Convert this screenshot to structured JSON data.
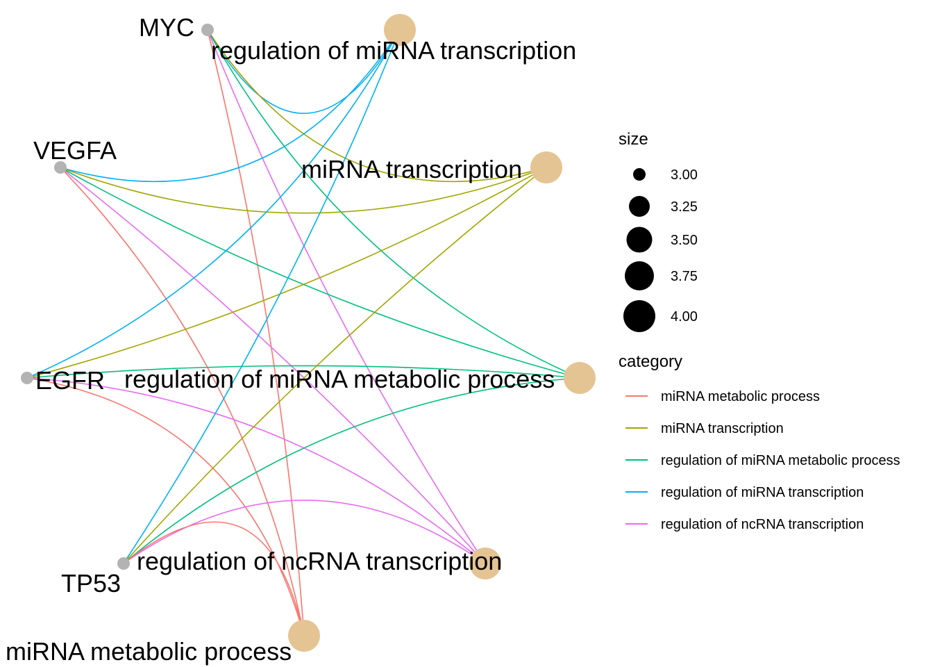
{
  "colors": {
    "miRNA metabolic process": "#F8766D",
    "miRNA transcription": "#A3A500",
    "regulation of miRNA metabolic process": "#00BF7D",
    "regulation of miRNA transcription": "#00B0F6",
    "regulation of ncRNA transcription": "#E76BF3",
    "gene_node": "#B3B3B3",
    "category_node": "#E5C494"
  },
  "genes": [
    {
      "name": "MYC",
      "label": "MYC"
    },
    {
      "name": "VEGFA",
      "label": "VEGFA"
    },
    {
      "name": "EGFR",
      "label": "EGFR"
    },
    {
      "name": "TP53",
      "label": "TP53"
    }
  ],
  "categories": [
    {
      "name": "regulation of miRNA transcription",
      "label": "regulation of miRNA transcription",
      "size": 4
    },
    {
      "name": "miRNA transcription",
      "label": "miRNA transcription",
      "size": 4
    },
    {
      "name": "regulation of miRNA metabolic process",
      "label": "regulation of miRNA metabolic process",
      "size": 4
    },
    {
      "name": "regulation of ncRNA transcription",
      "label": "regulation of ncRNA transcription",
      "size": 4
    },
    {
      "name": "miRNA metabolic process",
      "label": "miRNA metabolic process",
      "size": 4
    }
  ],
  "edges": [
    {
      "gene": "MYC",
      "category": "regulation of miRNA transcription"
    },
    {
      "gene": "MYC",
      "category": "miRNA transcription"
    },
    {
      "gene": "MYC",
      "category": "regulation of miRNA metabolic process"
    },
    {
      "gene": "MYC",
      "category": "regulation of ncRNA transcription"
    },
    {
      "gene": "MYC",
      "category": "miRNA metabolic process"
    },
    {
      "gene": "VEGFA",
      "category": "regulation of miRNA transcription"
    },
    {
      "gene": "VEGFA",
      "category": "miRNA transcription"
    },
    {
      "gene": "VEGFA",
      "category": "regulation of miRNA metabolic process"
    },
    {
      "gene": "VEGFA",
      "category": "regulation of ncRNA transcription"
    },
    {
      "gene": "VEGFA",
      "category": "miRNA metabolic process"
    },
    {
      "gene": "EGFR",
      "category": "regulation of miRNA transcription"
    },
    {
      "gene": "EGFR",
      "category": "miRNA transcription"
    },
    {
      "gene": "EGFR",
      "category": "regulation of miRNA metabolic process"
    },
    {
      "gene": "EGFR",
      "category": "regulation of ncRNA transcription"
    },
    {
      "gene": "EGFR",
      "category": "miRNA metabolic process"
    },
    {
      "gene": "TP53",
      "category": "regulation of miRNA transcription"
    },
    {
      "gene": "TP53",
      "category": "miRNA transcription"
    },
    {
      "gene": "TP53",
      "category": "regulation of miRNA metabolic process"
    },
    {
      "gene": "TP53",
      "category": "regulation of ncRNA transcription"
    },
    {
      "gene": "TP53",
      "category": "miRNA metabolic process"
    }
  ],
  "legend": {
    "size_title": "size",
    "size_items": [
      {
        "label": "3.00",
        "value": 3.0
      },
      {
        "label": "3.25",
        "value": 3.25
      },
      {
        "label": "3.50",
        "value": 3.5
      },
      {
        "label": "3.75",
        "value": 3.75
      },
      {
        "label": "4.00",
        "value": 4.0
      }
    ],
    "category_title": "category",
    "category_items": [
      "miRNA metabolic process",
      "miRNA transcription",
      "regulation of miRNA metabolic process",
      "regulation of miRNA transcription",
      "regulation of ncRNA transcription"
    ]
  }
}
